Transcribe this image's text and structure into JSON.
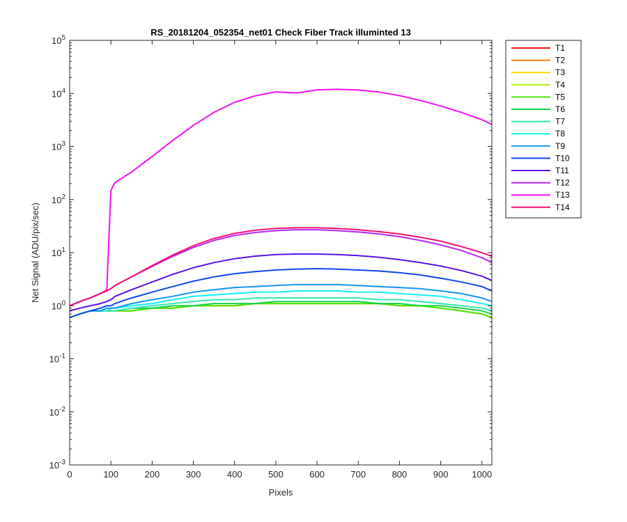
{
  "chart_data": {
    "type": "line",
    "title": "RS_20181204_052354_net01   Check Fiber     Track illuminted 13",
    "xlabel": "Pixels",
    "ylabel": "Net Signal (ADU/pix/sec)",
    "xlim": [
      0,
      1024
    ],
    "ylim": [
      0.001,
      100000
    ],
    "yscale": "log",
    "grid": false,
    "legend_position": "outside-top-right",
    "x_ticks": [
      "0",
      "100",
      "200",
      "300",
      "400",
      "500",
      "600",
      "700",
      "800",
      "900",
      "1000"
    ],
    "x_tick_values": [
      0,
      100,
      200,
      300,
      400,
      500,
      600,
      700,
      800,
      900,
      1000
    ],
    "y_ticks": [
      {
        "value": 0.001,
        "base": "10",
        "exp": "-3"
      },
      {
        "value": 0.01,
        "base": "10",
        "exp": "-2"
      },
      {
        "value": 0.1,
        "base": "10",
        "exp": "-1"
      },
      {
        "value": 1,
        "base": "10",
        "exp": "0"
      },
      {
        "value": 10,
        "base": "10",
        "exp": "1"
      },
      {
        "value": 100,
        "base": "10",
        "exp": "2"
      },
      {
        "value": 1000,
        "base": "10",
        "exp": "3"
      },
      {
        "value": 10000,
        "base": "10",
        "exp": "4"
      },
      {
        "value": 100000,
        "base": "10",
        "exp": "5"
      }
    ],
    "x": [
      0,
      25,
      50,
      75,
      90,
      100,
      110,
      150,
      200,
      250,
      300,
      350,
      400,
      450,
      500,
      550,
      600,
      650,
      700,
      750,
      800,
      850,
      900,
      950,
      1000,
      1024
    ],
    "series": [
      {
        "name": "T1",
        "color": "#e41a1a",
        "values": [
          0.6,
          0.7,
          0.8,
          0.8,
          0.8,
          0.8,
          0.8,
          0.8,
          0.9,
          0.9,
          1.0,
          1.0,
          1.0,
          1.1,
          1.1,
          1.1,
          1.1,
          1.1,
          1.1,
          1.1,
          1.0,
          1.0,
          0.9,
          0.8,
          0.7,
          0.6
        ]
      },
      {
        "name": "T2",
        "color": "#ff7f00",
        "values": [
          0.6,
          0.7,
          0.8,
          0.8,
          0.8,
          0.8,
          0.8,
          0.8,
          0.9,
          0.9,
          1.0,
          1.0,
          1.0,
          1.1,
          1.1,
          1.1,
          1.1,
          1.1,
          1.1,
          1.1,
          1.0,
          1.0,
          0.9,
          0.8,
          0.7,
          0.6
        ]
      },
      {
        "name": "T3",
        "color": "#ffd700",
        "values": [
          0.6,
          0.7,
          0.8,
          0.8,
          0.8,
          0.8,
          0.8,
          0.8,
          0.9,
          0.9,
          1.0,
          1.0,
          1.0,
          1.1,
          1.1,
          1.1,
          1.1,
          1.1,
          1.1,
          1.1,
          1.0,
          1.0,
          0.9,
          0.8,
          0.7,
          0.6
        ]
      },
      {
        "name": "T4",
        "color": "#b2f000",
        "values": [
          0.6,
          0.7,
          0.8,
          0.8,
          0.8,
          0.8,
          0.8,
          0.8,
          0.9,
          0.9,
          1.0,
          1.0,
          1.0,
          1.1,
          1.1,
          1.1,
          1.1,
          1.1,
          1.1,
          1.1,
          1.0,
          1.0,
          0.9,
          0.8,
          0.7,
          0.6
        ]
      },
      {
        "name": "T5",
        "color": "#4ce60a",
        "values": [
          0.6,
          0.7,
          0.8,
          0.8,
          0.8,
          0.8,
          0.8,
          0.8,
          0.9,
          0.9,
          1.0,
          1.0,
          1.0,
          1.1,
          1.1,
          1.1,
          1.1,
          1.1,
          1.1,
          1.1,
          1.0,
          1.0,
          0.9,
          0.8,
          0.7,
          0.6
        ]
      },
      {
        "name": "T6",
        "color": "#14d24a",
        "values": [
          0.6,
          0.7,
          0.8,
          0.8,
          0.8,
          0.8,
          0.8,
          0.9,
          0.9,
          1.0,
          1.0,
          1.1,
          1.1,
          1.1,
          1.2,
          1.2,
          1.2,
          1.2,
          1.2,
          1.1,
          1.1,
          1.0,
          1.0,
          0.9,
          0.8,
          0.7
        ]
      },
      {
        "name": "T7",
        "color": "#32e6b4",
        "values": [
          0.6,
          0.7,
          0.8,
          0.8,
          0.8,
          0.8,
          0.8,
          0.9,
          1.0,
          1.1,
          1.2,
          1.3,
          1.3,
          1.4,
          1.4,
          1.4,
          1.4,
          1.4,
          1.4,
          1.3,
          1.3,
          1.2,
          1.1,
          1.0,
          0.9,
          0.8
        ]
      },
      {
        "name": "T8",
        "color": "#14f0f0",
        "values": [
          0.6,
          0.7,
          0.8,
          0.8,
          0.8,
          0.9,
          0.9,
          1.0,
          1.1,
          1.3,
          1.5,
          1.6,
          1.7,
          1.8,
          1.8,
          1.9,
          1.9,
          1.9,
          1.8,
          1.8,
          1.7,
          1.6,
          1.5,
          1.3,
          1.1,
          1.0
        ]
      },
      {
        "name": "T9",
        "color": "#1496f0",
        "values": [
          0.6,
          0.7,
          0.8,
          0.8,
          0.9,
          0.9,
          0.9,
          1.1,
          1.3,
          1.5,
          1.8,
          2.0,
          2.2,
          2.3,
          2.4,
          2.5,
          2.5,
          2.5,
          2.4,
          2.3,
          2.2,
          2.1,
          1.9,
          1.7,
          1.4,
          1.2
        ]
      },
      {
        "name": "T10",
        "color": "#0f46f0",
        "values": [
          0.6,
          0.7,
          0.8,
          0.9,
          1.0,
          1.0,
          1.1,
          1.4,
          1.8,
          2.3,
          2.9,
          3.5,
          4.0,
          4.4,
          4.7,
          4.9,
          5.0,
          4.9,
          4.7,
          4.5,
          4.2,
          3.8,
          3.3,
          2.8,
          2.3,
          1.9
        ]
      },
      {
        "name": "T11",
        "color": "#5a0fe6",
        "values": [
          0.8,
          0.9,
          1.0,
          1.1,
          1.2,
          1.3,
          1.5,
          2.0,
          2.8,
          3.9,
          5.2,
          6.5,
          7.7,
          8.6,
          9.2,
          9.4,
          9.4,
          9.2,
          8.8,
          8.2,
          7.4,
          6.5,
          5.6,
          4.6,
          3.6,
          3.0
        ]
      },
      {
        "name": "T12",
        "color": "#b428f0",
        "values": [
          1.0,
          1.2,
          1.4,
          1.7,
          1.9,
          2.1,
          2.4,
          3.5,
          5.5,
          8.5,
          12.5,
          17.0,
          21.0,
          24.0,
          26.0,
          27.0,
          27.0,
          26.0,
          24.5,
          22.5,
          20.0,
          17.0,
          14.0,
          11.0,
          8.0,
          6.5
        ]
      },
      {
        "name": "T13",
        "color": "#f00ff0",
        "values": [
          1.0,
          1.2,
          1.4,
          1.7,
          2.0,
          150.0,
          210.0,
          330.0,
          650.0,
          1300.0,
          2500.0,
          4400.0,
          6800.0,
          9000.0,
          10700.0,
          10200.0,
          11700.0,
          12000.0,
          11600.0,
          10600.0,
          9100.0,
          7400.0,
          5800.0,
          4400.0,
          3200.0,
          2600.0
        ]
      },
      {
        "name": "T14",
        "color": "#f00f78",
        "values": [
          1.0,
          1.2,
          1.4,
          1.7,
          1.9,
          2.1,
          2.4,
          3.5,
          5.7,
          9.0,
          13.5,
          18.5,
          23.0,
          26.5,
          28.5,
          29.5,
          29.5,
          28.5,
          27.0,
          25.0,
          22.5,
          19.5,
          16.5,
          13.0,
          10.0,
          8.5
        ]
      }
    ]
  }
}
